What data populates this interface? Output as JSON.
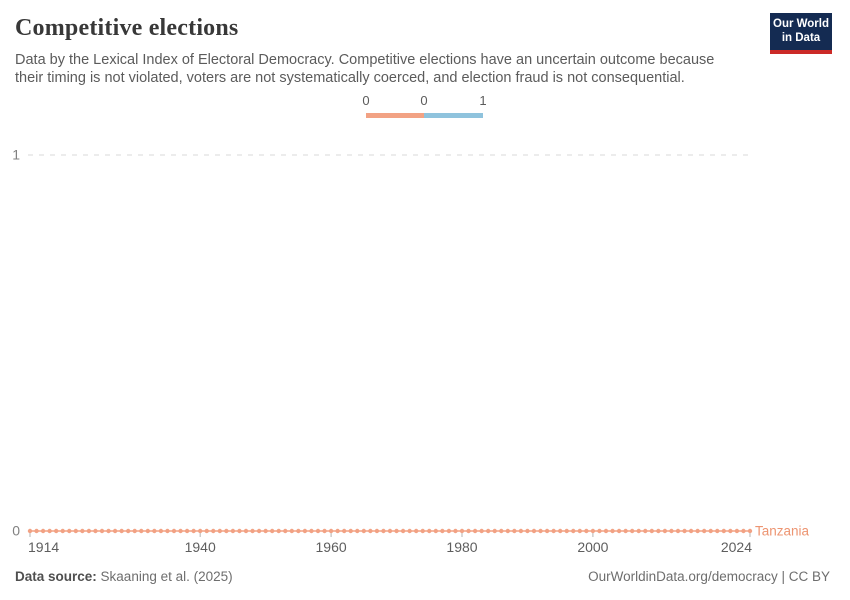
{
  "header": {
    "title": "Competitive elections",
    "subtitle": "Data by the Lexical Index of Electoral Democracy. Competitive elections have an uncertain outcome because their timing is not violated, voters are not systematically coerced, and election fraud is not consequential."
  },
  "logo": {
    "line1": "Our World",
    "line2": "in Data",
    "bg_color": "#142B52",
    "bar_color": "#CB2A27"
  },
  "legend": {
    "labels": [
      "0",
      "0",
      "1"
    ],
    "segments": [
      {
        "color": "#F2A284",
        "from": "0",
        "to": "0"
      },
      {
        "color": "#8FC3DD",
        "from": "0",
        "to": "1"
      }
    ]
  },
  "chart_data": {
    "type": "line",
    "title": "Competitive elections",
    "xlabel": "",
    "ylabel": "",
    "xlim": [
      1914,
      2024
    ],
    "ylim": [
      0,
      1
    ],
    "x_ticks": [
      "1914",
      "1940",
      "1960",
      "1980",
      "2000",
      "2024"
    ],
    "y_ticks": [
      "0",
      "1"
    ],
    "grid": "horizontal-dashed",
    "legend_position": "top-center",
    "series": [
      {
        "name": "Tanzania",
        "color": "#F2A284",
        "label_color": "#ED9572",
        "marker": "circle",
        "year_start": 1914,
        "year_end": 2024,
        "year_step": 1,
        "value_every_year": 0
      }
    ]
  },
  "footer": {
    "source_label": "Data source:",
    "source_value": "Skaaning et al. (2025)",
    "link_text": "OurWorldinData.org/democracy",
    "license_suffix": " | CC BY"
  }
}
